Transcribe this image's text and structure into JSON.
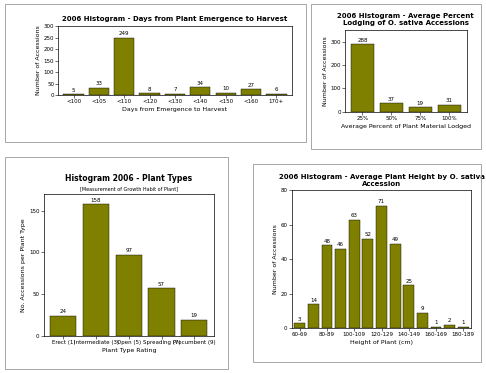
{
  "chart_data": [
    {
      "type": "bar",
      "title": "2006 Histogram - Days from Plant Emergence to Harvest",
      "x_label": "Days from Emergence to Harvest",
      "y_label": "Number of Accessions",
      "categories": [
        "<100",
        "<105",
        "<110",
        "<120",
        "<130",
        "<140",
        "<150",
        "<160",
        "170+"
      ],
      "values": [
        5,
        33,
        249,
        8,
        7,
        34,
        10,
        27,
        6
      ],
      "color": "#808000",
      "ylim": [
        0,
        300
      ],
      "yticks": [
        0,
        50,
        100,
        150,
        200,
        250,
        300
      ],
      "data_labels": true
    },
    {
      "type": "bar",
      "title": "2006 Histogram - Average Percent Lodging of O. sativa Accessions",
      "x_label": "Average Percent of Plant Material Lodged",
      "y_label": "Number of Accessions",
      "categories": [
        "25%",
        "50%",
        "75%",
        "100%"
      ],
      "values": [
        288,
        37,
        19,
        31
      ],
      "color": "#808000",
      "ylim": [
        0,
        350
      ],
      "yticks": [
        0,
        100,
        200,
        300
      ],
      "data_labels": true
    },
    {
      "type": "bar",
      "title": "Histogram 2006 - Plant Types",
      "subtitle": "[Measurement of Growth Habit of Plant]",
      "x_label": "Plant Type Rating",
      "y_label": "No. Accessions per Plant Type",
      "categories": [
        "Erect (1)",
        "Intermediate (3)",
        "Open (5)",
        "Spreading (7)",
        "Procumbent (9)"
      ],
      "values": [
        24,
        158,
        97,
        57,
        19
      ],
      "color": "#808000",
      "ylim": [
        0,
        170
      ],
      "yticks": [
        0,
        50,
        100,
        150
      ],
      "data_labels": true
    },
    {
      "type": "bar",
      "title": "2006 Histogram - Average Plant Height by O. sativa Accession",
      "x_label": "Height of Plant (cm)",
      "y_label": "Number of Accessions",
      "categories": [
        "60-69",
        null,
        "80-89",
        null,
        "100-109",
        null,
        "120-129",
        null,
        "140-149",
        null,
        "160-169",
        null,
        "180-189"
      ],
      "values": [
        3,
        14,
        48,
        46,
        63,
        52,
        71,
        49,
        25,
        9,
        1,
        2,
        1
      ],
      "color": "#808000",
      "ylim": [
        0,
        80
      ],
      "yticks": [
        0,
        20,
        40,
        60,
        80
      ],
      "data_labels": true
    }
  ]
}
